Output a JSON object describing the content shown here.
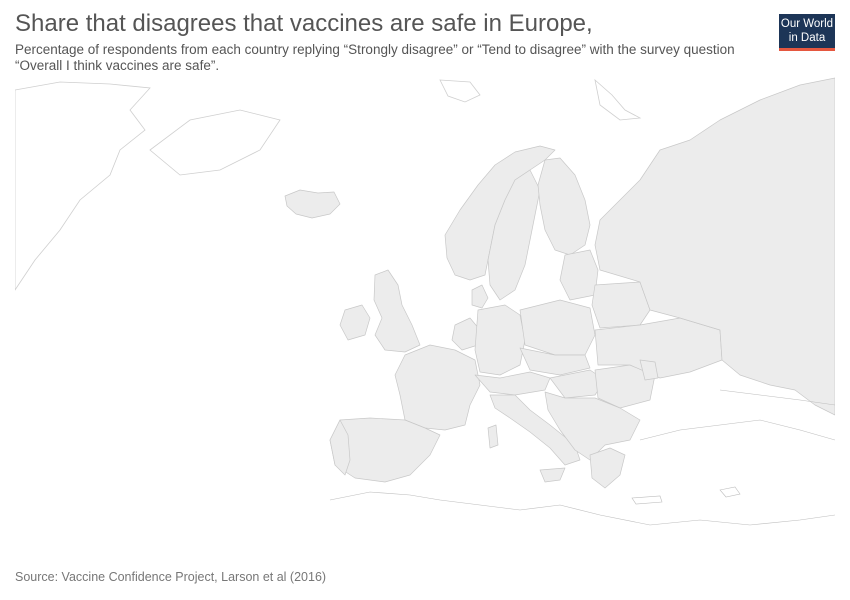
{
  "header": {
    "title": "Share that disagrees that vaccines are safe in Europe,",
    "subtitle": "Percentage of respondents from each country replying “Strongly disagree” or “Tend to disagree” with the survey question “Overall I think vaccines are safe”."
  },
  "logo": {
    "line1": "Our World",
    "line2": "in Data"
  },
  "map": {
    "land_color": "#ececec",
    "border_color": "#c8c8c8",
    "logo_color": "#1d3557",
    "logo_accent": "#e5573f"
  },
  "footer": {
    "source": "Source: Vaccine Confidence Project, Larson et al (2016)"
  }
}
